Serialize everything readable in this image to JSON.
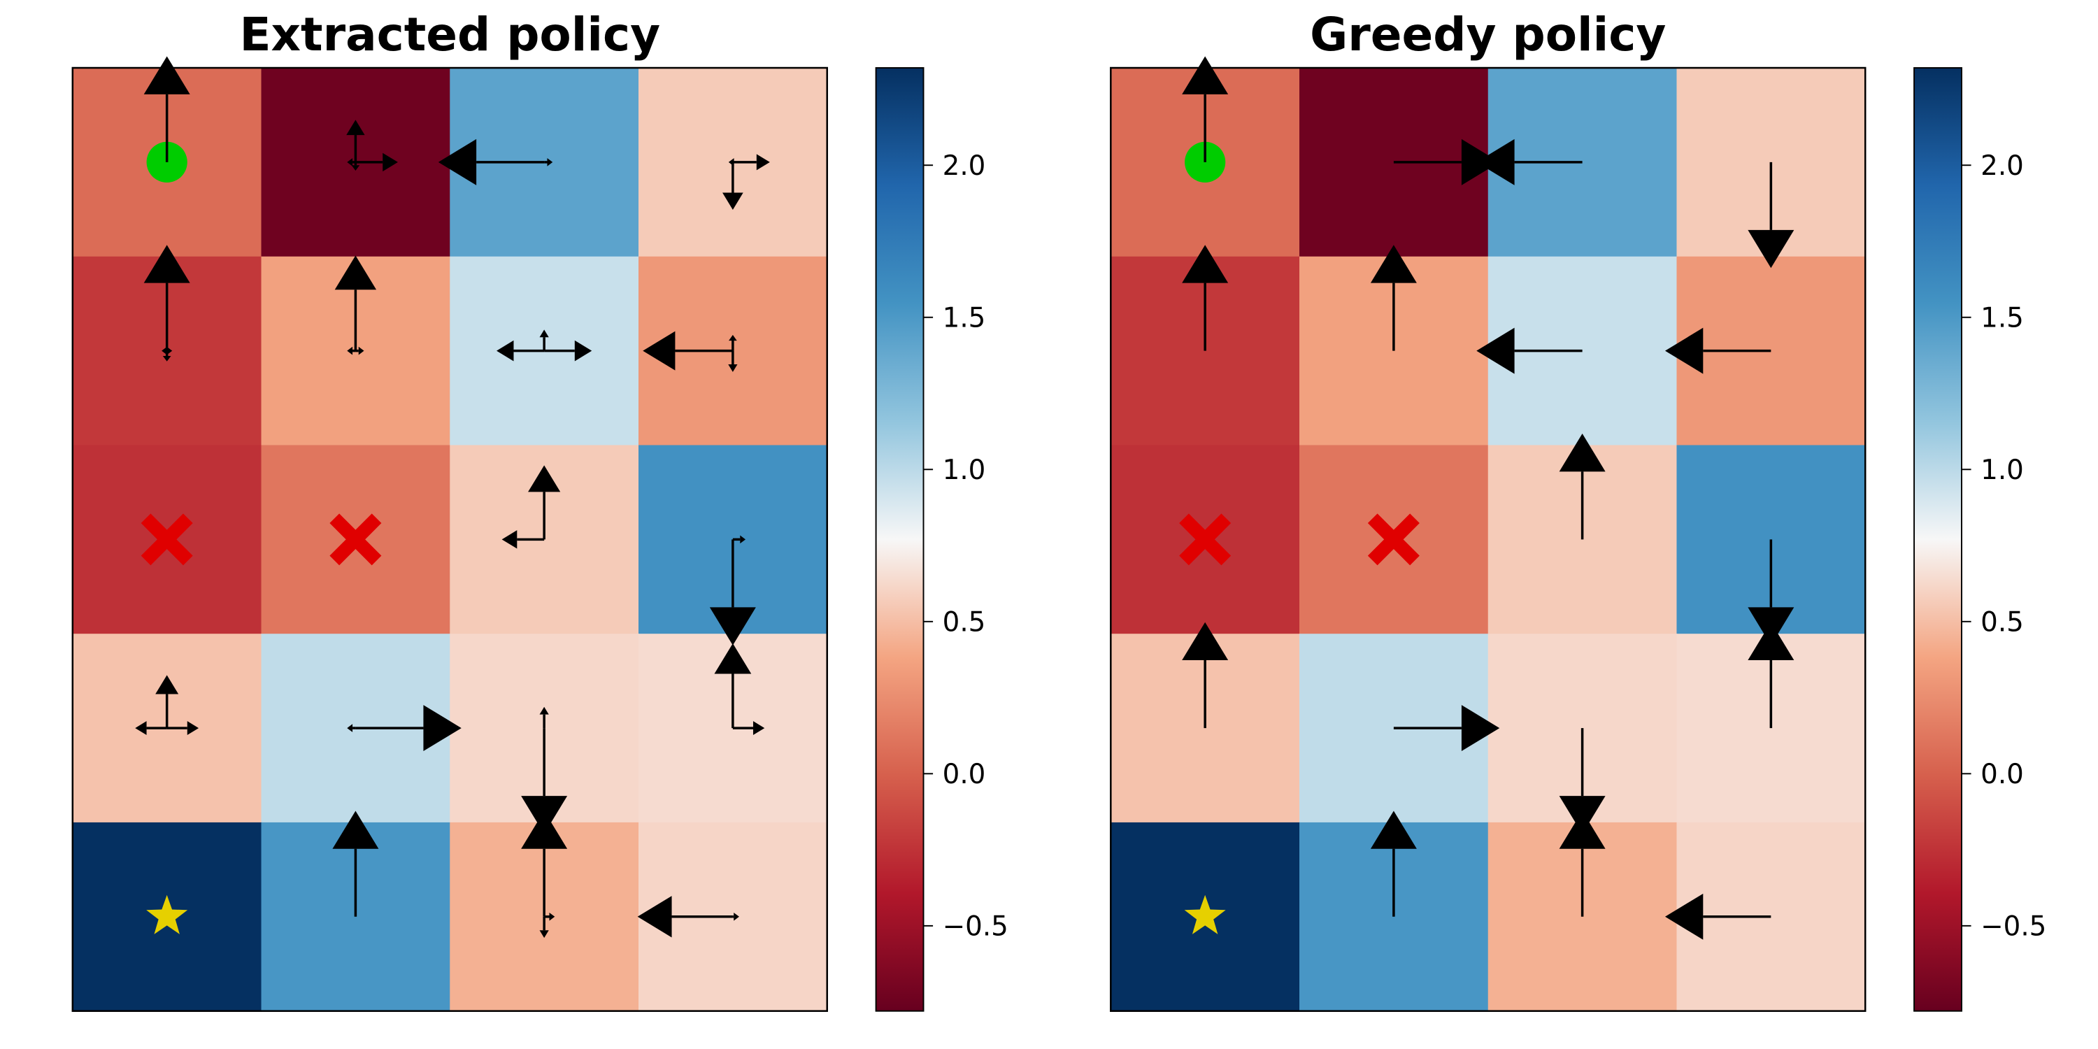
{
  "chart_data": [
    {
      "type": "heatmap",
      "title": "Extracted policy",
      "grid": {
        "rows": 5,
        "cols": 4
      },
      "values": [
        [
          0.06,
          -0.74,
          1.42,
          0.56
        ],
        [
          -0.22,
          0.36,
          0.95,
          0.31
        ],
        [
          -0.26,
          0.12,
          0.56,
          1.56
        ],
        [
          0.52,
          0.98,
          0.62,
          0.64
        ],
        [
          2.32,
          1.52,
          0.44,
          0.61
        ]
      ],
      "markers": [
        {
          "row": 0,
          "col": 0,
          "kind": "start",
          "shape": "circle",
          "color": "#00cc00"
        },
        {
          "row": 2,
          "col": 0,
          "kind": "hazard",
          "shape": "cross",
          "color": "#e00000"
        },
        {
          "row": 2,
          "col": 1,
          "kind": "hazard",
          "shape": "cross",
          "color": "#e00000"
        },
        {
          "row": 4,
          "col": 0,
          "kind": "goal",
          "shape": "star",
          "color": "#e6d000"
        }
      ],
      "action_probabilities_up_right_down_left": [
        [
          [
            1.0,
            0,
            0,
            0
          ],
          [
            0.4,
            0.4,
            0.08,
            0.08
          ],
          [
            0,
            0.08,
            0,
            1.0
          ],
          [
            0,
            0.35,
            0.45,
            0.04
          ]
        ],
        [
          [
            1.0,
            0.05,
            0.1,
            0.05
          ],
          [
            0.9,
            0.08,
            0,
            0.08
          ],
          [
            0.2,
            0.45,
            0,
            0.45
          ],
          [
            0.15,
            0,
            0.2,
            0.85
          ]
        ],
        [
          [
            0,
            0,
            0,
            0
          ],
          [
            0,
            0,
            0,
            0
          ],
          [
            0.7,
            0,
            0,
            0.4
          ],
          [
            0,
            0.12,
            1.0,
            0
          ]
        ],
        [
          [
            0.5,
            0.3,
            0,
            0.3
          ],
          [
            0,
            1.0,
            0,
            0.08
          ],
          [
            0.2,
            0,
            1.0,
            0
          ],
          [
            0.8,
            0.3,
            0,
            0
          ]
        ],
        [
          [
            0,
            0,
            0,
            0
          ],
          [
            1.0,
            0,
            0,
            0
          ],
          [
            1.0,
            0.1,
            0.2,
            0
          ],
          [
            0,
            0.06,
            0,
            0.9
          ]
        ]
      ],
      "colorbar": {
        "vmin": -0.78,
        "vmax": 2.32,
        "ticks": [
          "−0.5",
          "0.0",
          "0.5",
          "1.0",
          "1.5",
          "2.0"
        ],
        "tick_values": [
          -0.5,
          0.0,
          0.5,
          1.0,
          1.5,
          2.0
        ],
        "colormap": "RdBu"
      }
    },
    {
      "type": "heatmap",
      "title": "Greedy policy",
      "grid": {
        "rows": 5,
        "cols": 4
      },
      "values": [
        [
          0.06,
          -0.74,
          1.42,
          0.56
        ],
        [
          -0.22,
          0.36,
          0.95,
          0.31
        ],
        [
          -0.26,
          0.12,
          0.56,
          1.56
        ],
        [
          0.52,
          0.98,
          0.62,
          0.64
        ],
        [
          2.32,
          1.52,
          0.44,
          0.61
        ]
      ],
      "markers": [
        {
          "row": 0,
          "col": 0,
          "kind": "start",
          "shape": "circle",
          "color": "#00cc00"
        },
        {
          "row": 2,
          "col": 0,
          "kind": "hazard",
          "shape": "cross",
          "color": "#e00000"
        },
        {
          "row": 2,
          "col": 1,
          "kind": "hazard",
          "shape": "cross",
          "color": "#e00000"
        },
        {
          "row": 4,
          "col": 0,
          "kind": "goal",
          "shape": "star",
          "color": "#e6d000"
        }
      ],
      "greedy_actions": [
        [
          "up",
          "right",
          "left",
          "down"
        ],
        [
          "up",
          "up",
          "left",
          "left"
        ],
        [
          "",
          "",
          "up",
          "down"
        ],
        [
          "up",
          "right",
          "down",
          "up"
        ],
        [
          "",
          "up",
          "up",
          "left"
        ]
      ],
      "colorbar": {
        "vmin": -0.78,
        "vmax": 2.32,
        "ticks": [
          "−0.5",
          "0.0",
          "0.5",
          "1.0",
          "1.5",
          "2.0"
        ],
        "tick_values": [
          -0.5,
          0.0,
          0.5,
          1.0,
          1.5,
          2.0
        ],
        "colormap": "RdBu"
      }
    }
  ]
}
